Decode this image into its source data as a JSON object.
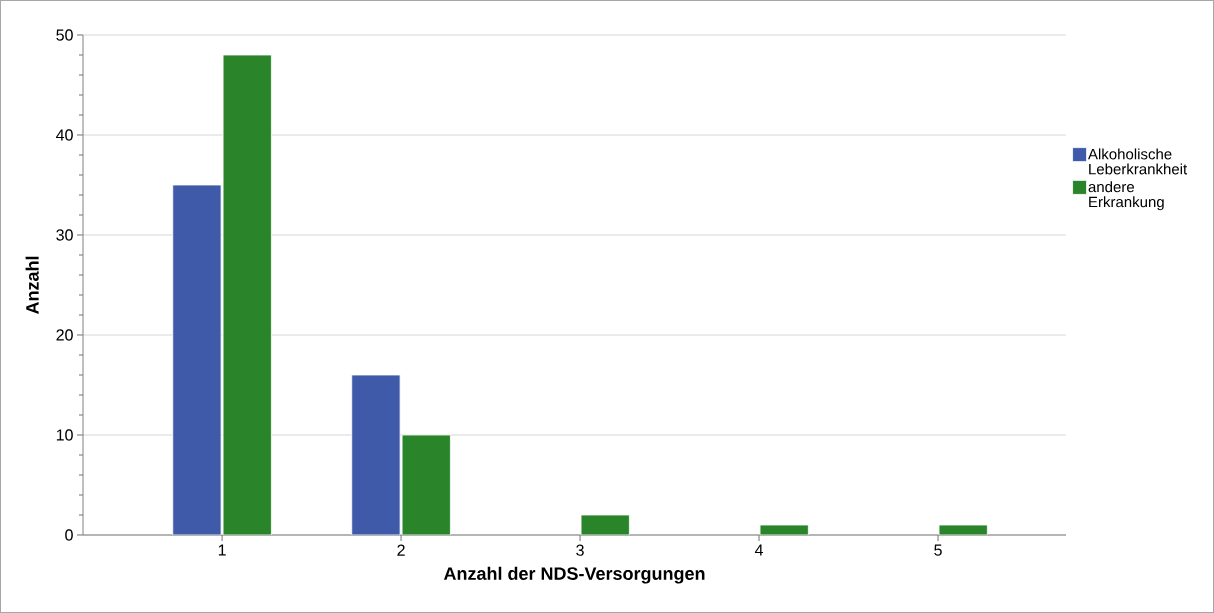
{
  "chart_data": {
    "type": "bar",
    "xlabel": "Anzahl der NDS-Versorgungen",
    "ylabel": "Anzahl",
    "categories": [
      "1",
      "2",
      "3",
      "4",
      "5"
    ],
    "series": [
      {
        "name": "Alkoholische Leberkrankheit",
        "color": "#3f5aa9",
        "values": [
          35,
          16,
          null,
          null,
          null
        ]
      },
      {
        "name": "andere Erkrankung",
        "color": "#2a852a",
        "values": [
          48,
          10,
          2,
          1,
          1
        ]
      }
    ],
    "ylim": [
      0,
      50
    ],
    "yticks": [
      0,
      10,
      20,
      30,
      40,
      50
    ],
    "grid": "y",
    "legend": "right"
  }
}
